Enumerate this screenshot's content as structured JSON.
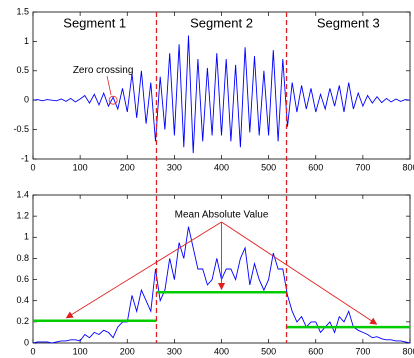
{
  "chart_data": [
    {
      "type": "line",
      "color": "#0000ff",
      "segment_labels": [
        "Segment 1",
        "Segment 2",
        "Segment 3"
      ],
      "annotation": "Zero crossing",
      "annotation_x": 170,
      "boundaries": [
        262,
        538
      ],
      "boundary_color": "#e02020",
      "x": [
        0,
        10,
        20,
        30,
        40,
        50,
        60,
        70,
        80,
        90,
        100,
        110,
        120,
        130,
        140,
        150,
        160,
        170,
        180,
        190,
        200,
        210,
        220,
        230,
        240,
        250,
        260,
        270,
        280,
        290,
        300,
        310,
        320,
        330,
        340,
        350,
        360,
        370,
        380,
        390,
        400,
        410,
        420,
        430,
        440,
        450,
        460,
        470,
        480,
        490,
        500,
        510,
        520,
        530,
        540,
        550,
        560,
        570,
        580,
        590,
        600,
        610,
        620,
        630,
        640,
        650,
        660,
        670,
        680,
        690,
        700,
        710,
        720,
        730,
        740,
        750,
        760,
        770,
        780,
        790,
        800
      ],
      "values": [
        0,
        0.01,
        -0.01,
        0.01,
        0,
        -0.01,
        0.02,
        -0.02,
        0.03,
        -0.03,
        0.02,
        0.08,
        -0.05,
        0.1,
        -0.08,
        0.12,
        -0.1,
        0.05,
        -0.15,
        0.2,
        -0.2,
        0.45,
        -0.3,
        0.5,
        -0.4,
        0.3,
        -0.7,
        0.4,
        -0.5,
        0.8,
        -0.6,
        0.95,
        -0.8,
        1.1,
        -0.9,
        0.7,
        -0.7,
        0.55,
        -0.6,
        0.8,
        -0.6,
        0.7,
        -0.7,
        0.6,
        -0.8,
        0.9,
        -0.55,
        0.75,
        -0.6,
        0.5,
        -0.6,
        0.85,
        -0.7,
        0.7,
        -0.45,
        0.3,
        -0.2,
        0.25,
        -0.15,
        0.2,
        -0.2,
        0.1,
        -0.15,
        0.2,
        -0.1,
        0.25,
        -0.2,
        0.3,
        -0.15,
        0.12,
        -0.1,
        0.08,
        -0.05,
        0.06,
        -0.04,
        0.03,
        -0.03,
        0.02,
        -0.02,
        0.01,
        0
      ],
      "xlim": [
        0,
        800
      ],
      "xticks": [
        0,
        100,
        200,
        300,
        400,
        500,
        600,
        700,
        800
      ],
      "ylim": [
        -1,
        1.5
      ],
      "yticks": [
        -1,
        -0.5,
        0,
        0.5,
        1,
        1.5
      ]
    },
    {
      "type": "line",
      "color": "#0000ff",
      "annotation": "Mean Absolute Value",
      "segment_means": [
        0.21,
        0.48,
        0.15
      ],
      "mean_color": "#00cc00",
      "arrow_color": "#e02020",
      "x": [
        0,
        10,
        20,
        30,
        40,
        50,
        60,
        70,
        80,
        90,
        100,
        110,
        120,
        130,
        140,
        150,
        160,
        170,
        180,
        190,
        200,
        210,
        220,
        230,
        240,
        250,
        260,
        270,
        280,
        290,
        300,
        310,
        320,
        330,
        340,
        350,
        360,
        370,
        380,
        390,
        400,
        410,
        420,
        430,
        440,
        450,
        460,
        470,
        480,
        490,
        500,
        510,
        520,
        530,
        540,
        550,
        560,
        570,
        580,
        590,
        600,
        610,
        620,
        630,
        640,
        650,
        660,
        670,
        680,
        690,
        700,
        710,
        720,
        730,
        740,
        750,
        760,
        770,
        780,
        790,
        800
      ],
      "values": [
        0,
        0.01,
        0.01,
        0.01,
        0,
        0.01,
        0.02,
        0.02,
        0.03,
        0.03,
        0.02,
        0.08,
        0.05,
        0.1,
        0.08,
        0.12,
        0.1,
        0.05,
        0.15,
        0.2,
        0.2,
        0.45,
        0.3,
        0.5,
        0.4,
        0.3,
        0.7,
        0.4,
        0.5,
        0.8,
        0.6,
        0.95,
        0.8,
        1.1,
        0.9,
        0.7,
        0.7,
        0.55,
        0.6,
        0.8,
        0.6,
        0.7,
        0.7,
        0.6,
        0.8,
        0.9,
        0.55,
        0.75,
        0.6,
        0.5,
        0.6,
        0.85,
        0.7,
        0.7,
        0.45,
        0.3,
        0.2,
        0.25,
        0.15,
        0.2,
        0.2,
        0.1,
        0.15,
        0.2,
        0.1,
        0.25,
        0.2,
        0.3,
        0.15,
        0.12,
        0.1,
        0.08,
        0.05,
        0.06,
        0.04,
        0.03,
        0.03,
        0.02,
        0.02,
        0.01,
        0
      ],
      "xlim": [
        0,
        800
      ],
      "xticks": [
        0,
        100,
        200,
        300,
        400,
        500,
        600,
        700,
        800
      ],
      "ylim": [
        0,
        1.4
      ],
      "yticks": [
        0,
        0.2,
        0.4,
        0.6,
        0.8,
        1,
        1.2,
        1.4
      ]
    }
  ]
}
